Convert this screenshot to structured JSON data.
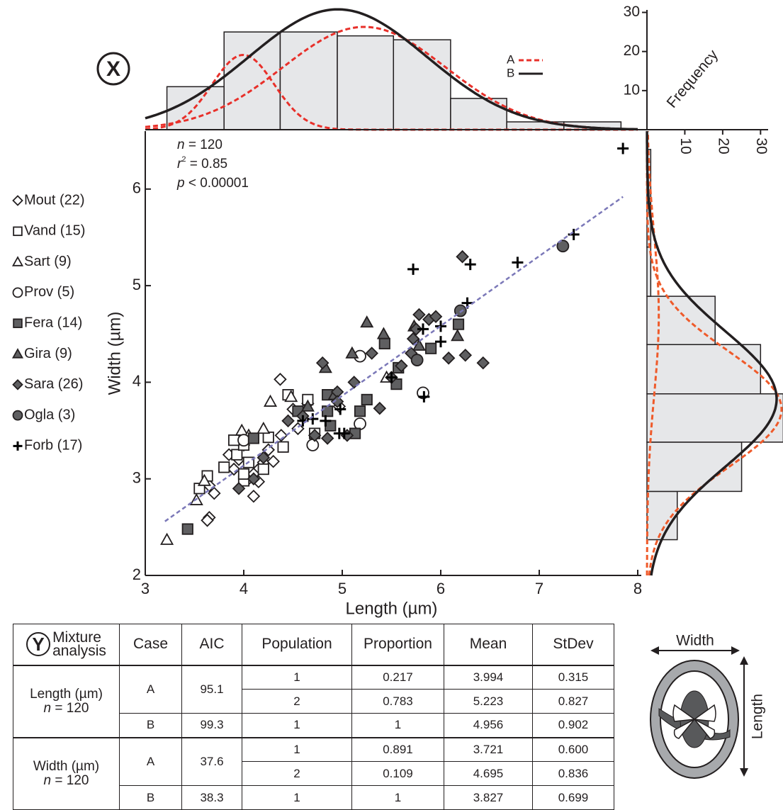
{
  "chart_data": [
    {
      "type": "scatter",
      "x_label": "Length (µm)",
      "y_label": "Width (µm)",
      "xlim": [
        3,
        8
      ],
      "ylim": [
        2,
        6.6
      ],
      "xticks": [
        3,
        4,
        5,
        6,
        7,
        8
      ],
      "yticks": [
        2,
        3,
        4,
        5,
        6
      ],
      "annotations": [
        {
          "symbol": "n",
          "text": " = 120"
        },
        {
          "symbol": "r",
          "sup": "2",
          "text": " = 0.85"
        },
        {
          "symbol": "p",
          "text": " < 0.00001"
        }
      ],
      "fit": {
        "x": [
          3.2,
          7.85
        ],
        "y": [
          2.56,
          5.92
        ],
        "color": "#7b78b8"
      },
      "series": [
        {
          "name": "Mout (22)",
          "marker": "diamond",
          "color": "#ffffff",
          "x": [
            4.37,
            4.55,
            4.38,
            4.2,
            4.15,
            4.05,
            4.1,
            4.15,
            3.95,
            3.9,
            3.7,
            3.65,
            3.65,
            3.63,
            4.0,
            4.25,
            4.5,
            4.65,
            4.97,
            3.85,
            4.1,
            4.3
          ],
          "y": [
            4.03,
            3.52,
            3.45,
            3.17,
            3.1,
            3.0,
            2.82,
            2.97,
            3.2,
            3.1,
            2.85,
            2.93,
            2.6,
            2.57,
            3.35,
            3.3,
            3.72,
            3.78,
            3.75,
            3.25,
            3.05,
            3.18
          ]
        },
        {
          "name": "Vand (15)",
          "marker": "square",
          "color": "#ffffff",
          "x": [
            3.55,
            3.63,
            3.8,
            3.93,
            4.0,
            4.0,
            4.2,
            4.25,
            4.4,
            4.45,
            4.65,
            4.72,
            4.0,
            3.9,
            4.05
          ],
          "y": [
            2.9,
            3.03,
            3.12,
            3.25,
            2.98,
            3.05,
            3.1,
            3.43,
            3.33,
            3.87,
            3.82,
            3.47,
            3.35,
            3.4,
            3.17
          ]
        },
        {
          "name": "Sart (9)",
          "marker": "triangle",
          "color": "#ffffff",
          "x": [
            3.22,
            3.52,
            3.6,
            3.98,
            4.2,
            4.27,
            4.48,
            5.45,
            4.05
          ],
          "y": [
            2.37,
            2.78,
            2.98,
            3.5,
            3.52,
            3.8,
            3.85,
            4.05,
            3.45
          ]
        },
        {
          "name": "Prov (5)",
          "marker": "circle",
          "color": "#ffffff",
          "x": [
            4.7,
            5.18,
            5.18,
            5.82,
            4.0
          ],
          "y": [
            3.35,
            4.27,
            3.57,
            3.89,
            3.4
          ]
        },
        {
          "name": "Fera (14)",
          "marker": "square",
          "color": "#5f5f61",
          "x": [
            3.43,
            4.1,
            4.85,
            4.85,
            4.88,
            5.13,
            5.18,
            5.25,
            5.55,
            5.57,
            5.43,
            5.9,
            6.18,
            4.55
          ],
          "y": [
            2.48,
            3.42,
            3.87,
            3.7,
            3.55,
            3.47,
            3.7,
            3.82,
            3.98,
            4.15,
            4.4,
            4.35,
            4.6,
            3.7
          ]
        },
        {
          "name": "Gira (9)",
          "marker": "triangle",
          "color": "#5f5f61",
          "x": [
            4.83,
            5.1,
            5.25,
            5.42,
            5.73,
            5.78,
            6.17,
            4.92,
            4.65
          ],
          "y": [
            4.15,
            4.3,
            4.62,
            4.5,
            4.58,
            4.38,
            4.48,
            3.87,
            3.75
          ]
        },
        {
          "name": "Sara (26)",
          "marker": "diamond",
          "color": "#5f5f61",
          "x": [
            3.95,
            4.1,
            4.2,
            4.45,
            4.6,
            4.72,
            4.8,
            4.85,
            4.95,
            5.05,
            5.12,
            5.3,
            5.38,
            5.6,
            5.7,
            5.75,
            5.78,
            5.72,
            5.88,
            5.95,
            6.08,
            6.25,
            6.22,
            6.43,
            5.5,
            4.95
          ],
          "y": [
            2.9,
            3.0,
            3.22,
            3.6,
            3.65,
            3.45,
            4.2,
            3.42,
            3.9,
            3.45,
            4.0,
            4.3,
            3.73,
            4.17,
            4.3,
            4.55,
            4.7,
            4.45,
            4.65,
            4.68,
            4.25,
            4.28,
            5.3,
            4.2,
            4.05,
            3.8
          ]
        },
        {
          "name": "Ogla (3)",
          "marker": "circle",
          "color": "#5f5f61",
          "x": [
            5.76,
            6.2,
            7.24
          ],
          "y": [
            4.23,
            4.74,
            5.41
          ]
        },
        {
          "name": "Forb (17)",
          "marker": "plus",
          "color": "#000000",
          "x": [
            4.6,
            4.7,
            4.83,
            4.98,
            4.97,
            5.02,
            5.5,
            5.72,
            5.83,
            5.82,
            6.0,
            6.0,
            6.27,
            6.3,
            6.78,
            7.35,
            7.85
          ],
          "y": [
            3.6,
            3.62,
            3.6,
            3.72,
            3.47,
            3.47,
            4.05,
            5.17,
            3.85,
            4.55,
            4.42,
            4.58,
            4.82,
            5.22,
            5.24,
            5.53,
            6.42
          ]
        }
      ]
    },
    {
      "type": "histogram",
      "orientation": "vertical",
      "panel_label": "X",
      "y_label": "Frequency",
      "bins": [
        3.22,
        3.8,
        4.37,
        4.95,
        5.52,
        6.1,
        6.67,
        7.25,
        7.83
      ],
      "counts": [
        11,
        25,
        25,
        24,
        23,
        8,
        2,
        2
      ],
      "color": "#e6e7e9",
      "ylim": [
        0,
        31
      ],
      "yticks": [
        10,
        20,
        30
      ],
      "legend": [
        {
          "name": "A",
          "color": "#e8302a",
          "dash": true
        },
        {
          "name": "B",
          "color": "#231f20",
          "dash": false
        }
      ]
    },
    {
      "type": "histogram",
      "orientation": "horizontal",
      "bins": [
        2.37,
        2.87,
        3.38,
        3.88,
        4.39,
        4.89,
        5.4,
        5.9,
        6.41
      ],
      "counts": [
        8,
        25,
        36,
        30,
        18,
        1,
        1,
        1
      ],
      "color": "#e6e7e9",
      "xlim": [
        0,
        32
      ],
      "xticks": [
        10,
        20,
        30
      ],
      "curve_colors": [
        "#ef5a2a",
        "#231f20"
      ]
    }
  ],
  "table": {
    "panel_label": "Y",
    "title": [
      "Mixture",
      "analysis"
    ],
    "columns": [
      "Case",
      "AIC",
      "Population",
      "Proportion",
      "Mean",
      "StDev"
    ],
    "groups": [
      {
        "label": "Length (µm)",
        "n": {
          "symbol": "n",
          "text": " = 120"
        },
        "cases": [
          {
            "case": "A",
            "aic": "95.1",
            "rows": [
              [
                "1",
                "0.217",
                "3.994",
                "0.315"
              ],
              [
                "2",
                "0.783",
                "5.223",
                "0.827"
              ]
            ]
          },
          {
            "case": "B",
            "aic": "99.3",
            "rows": [
              [
                "1",
                "1",
                "4.956",
                "0.902"
              ]
            ]
          }
        ]
      },
      {
        "label": "Width (µm)",
        "n": {
          "symbol": "n",
          "text": " = 120"
        },
        "cases": [
          {
            "case": "A",
            "aic": "37.6",
            "rows": [
              [
                "1",
                "0.891",
                "3.721",
                "0.600"
              ],
              [
                "2",
                "0.109",
                "4.695",
                "0.836"
              ]
            ]
          },
          {
            "case": "B",
            "aic": "38.3",
            "rows": [
              [
                "1",
                "1",
                "3.827",
                "0.699"
              ]
            ]
          }
        ]
      }
    ]
  },
  "diagram": {
    "width_label": "Width",
    "length_label": "Length"
  }
}
